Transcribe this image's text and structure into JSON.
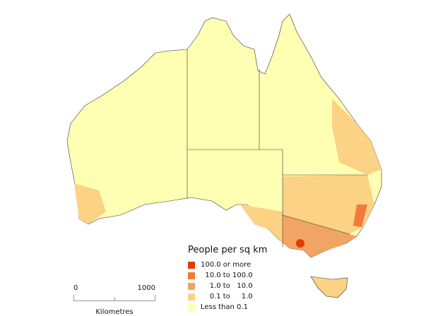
{
  "legend": {
    "title": "People per sq km",
    "items": [
      {
        "label": "100.0 or more",
        "color": "#e23c00"
      },
      {
        "label": "  10.0 to 100.0",
        "color": "#f27a3a"
      },
      {
        "label": "    1.0 to   10.0",
        "color": "#f2a464"
      },
      {
        "label": "    0.1 to     1.0",
        "color": "#fcd285"
      },
      {
        "label": "Less than 0.1",
        "color": "#ffffb4"
      }
    ]
  },
  "scale": {
    "start": "0",
    "end": "1000",
    "unit": "Kilometres"
  }
}
